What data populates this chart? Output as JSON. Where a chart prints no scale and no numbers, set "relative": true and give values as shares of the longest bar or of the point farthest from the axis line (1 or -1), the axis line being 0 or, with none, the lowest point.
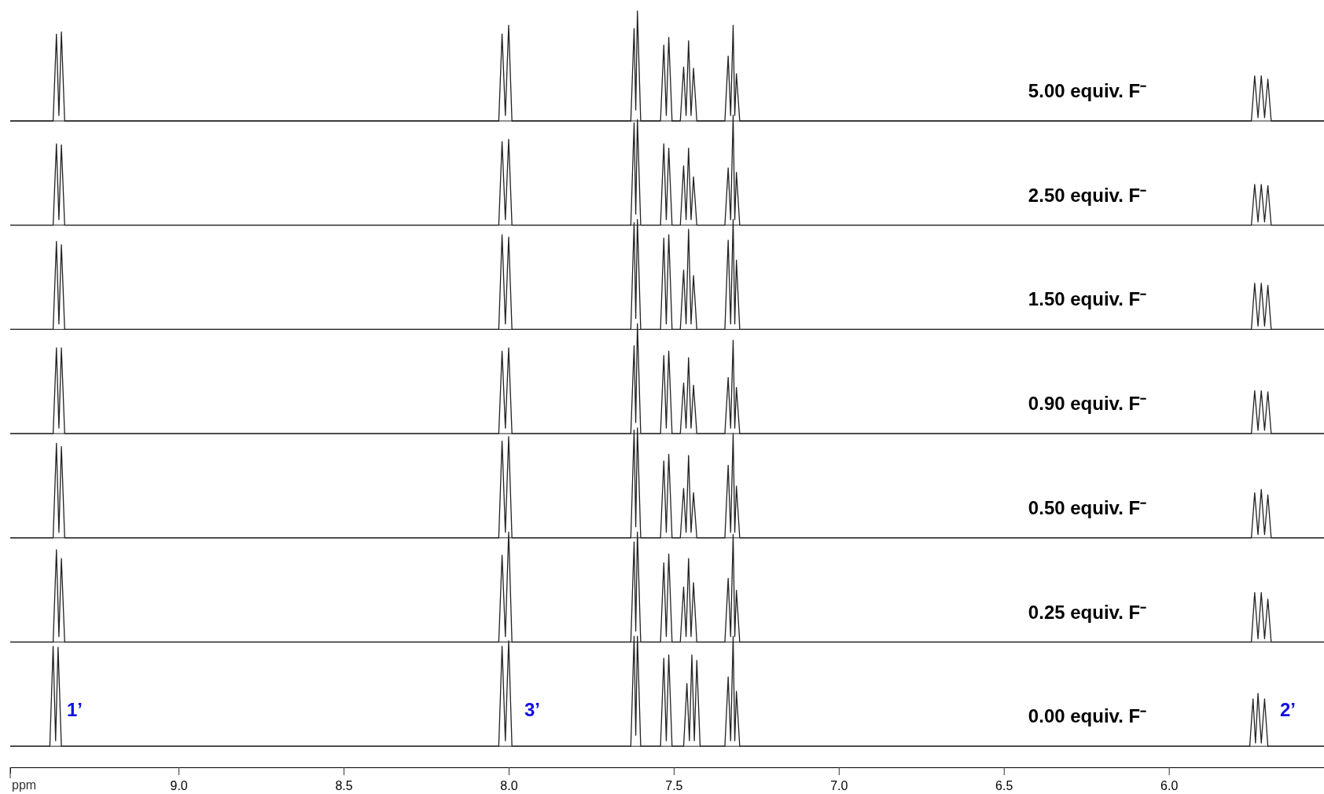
{
  "chart_data": [
    {
      "type": "line",
      "relative": true,
      "xlim": [
        9.51,
        5.53
      ],
      "tick_labels": false,
      "annotations": [
        "5.00 equiv. F⁻"
      ],
      "x": [
        9.51,
        9.38,
        9.37,
        9.3625,
        9.355,
        9.345,
        8.03,
        8.02,
        8.01,
        8.0,
        7.99,
        7.63,
        7.62,
        7.615,
        7.61,
        7.6,
        7.54,
        7.53,
        7.5225,
        7.515,
        7.505,
        7.48,
        7.47,
        7.4625,
        7.455,
        7.4475,
        7.44,
        7.43,
        7.345,
        7.335,
        7.3275,
        7.32,
        7.315,
        7.31,
        7.3,
        5.75,
        5.74,
        5.73,
        5.72,
        5.71,
        5.7,
        5.69,
        5.53
      ],
      "series": [
        {
          "color": "#222222",
          "values": [
            0,
            0,
            0.79,
            0.05,
            0.81,
            0,
            0,
            0.79,
            0.05,
            0.87,
            0,
            0,
            0.84,
            0.1,
            1,
            0,
            0,
            0.69,
            0.05,
            0.76,
            0,
            0,
            0.49,
            0.05,
            0.73,
            0.05,
            0.48,
            0,
            0,
            0.59,
            0.05,
            0.87,
            0.05,
            0.43,
            0,
            0,
            0.41,
            0.03,
            0.41,
            0.03,
            0.38,
            0,
            0
          ]
        }
      ]
    },
    {
      "type": "line",
      "relative": true,
      "xlim": [
        9.51,
        5.53
      ],
      "tick_labels": false,
      "annotations": [
        "2.50 equiv. F⁻"
      ],
      "x": [
        9.51,
        9.38,
        9.37,
        9.3625,
        9.355,
        9.345,
        8.03,
        8.02,
        8.01,
        8.0,
        7.99,
        7.63,
        7.62,
        7.615,
        7.61,
        7.6,
        7.54,
        7.53,
        7.5225,
        7.515,
        7.505,
        7.48,
        7.47,
        7.4625,
        7.455,
        7.4475,
        7.44,
        7.43,
        7.345,
        7.335,
        7.3275,
        7.32,
        7.315,
        7.31,
        7.3,
        5.75,
        5.74,
        5.73,
        5.72,
        5.71,
        5.7,
        5.69,
        5.53
      ],
      "series": [
        {
          "color": "#222222",
          "values": [
            0,
            0,
            0.74,
            0.05,
            0.73,
            0,
            0,
            0.76,
            0.05,
            0.78,
            0,
            0,
            0.93,
            0.1,
            0.96,
            0,
            0,
            0.74,
            0.05,
            0.7,
            0,
            0,
            0.54,
            0.05,
            0.7,
            0.05,
            0.44,
            0,
            0,
            0.52,
            0.05,
            1,
            0.05,
            0.48,
            0,
            0,
            0.37,
            0.03,
            0.37,
            0.03,
            0.36,
            0,
            0
          ]
        }
      ]
    },
    {
      "type": "line",
      "relative": true,
      "xlim": [
        9.51,
        5.53
      ],
      "tick_labels": false,
      "annotations": [
        "1.50 equiv. F⁻"
      ],
      "x": [
        9.51,
        9.38,
        9.37,
        9.3625,
        9.355,
        9.345,
        8.03,
        8.02,
        8.01,
        8.0,
        7.99,
        7.63,
        7.62,
        7.615,
        7.61,
        7.6,
        7.54,
        7.53,
        7.5225,
        7.515,
        7.505,
        7.48,
        7.47,
        7.4625,
        7.455,
        7.4475,
        7.44,
        7.43,
        7.345,
        7.335,
        7.3275,
        7.32,
        7.315,
        7.31,
        7.3,
        5.75,
        5.74,
        5.73,
        5.72,
        5.71,
        5.7,
        5.69,
        5.53
      ],
      "series": [
        {
          "color": "#222222",
          "values": [
            0,
            0,
            0.8,
            0.05,
            0.77,
            0,
            0,
            0.86,
            0.05,
            0.84,
            0,
            0,
            0.97,
            0.1,
            1,
            0,
            0,
            0.83,
            0.05,
            0.86,
            0,
            0,
            0.54,
            0.05,
            0.91,
            0.05,
            0.49,
            0,
            0,
            0.81,
            0.05,
            1,
            0.05,
            0.63,
            0,
            0,
            0.42,
            0.03,
            0.42,
            0.03,
            0.4,
            0,
            0
          ]
        }
      ]
    },
    {
      "type": "line",
      "relative": true,
      "xlim": [
        9.51,
        5.53
      ],
      "tick_labels": false,
      "annotations": [
        "0.90 equiv. F⁻"
      ],
      "x": [
        9.51,
        9.38,
        9.37,
        9.3625,
        9.355,
        9.345,
        8.03,
        8.02,
        8.01,
        8.0,
        7.99,
        7.63,
        7.62,
        7.615,
        7.61,
        7.6,
        7.54,
        7.53,
        7.5225,
        7.515,
        7.505,
        7.48,
        7.47,
        7.4625,
        7.455,
        7.4475,
        7.44,
        7.43,
        7.345,
        7.335,
        7.3275,
        7.32,
        7.315,
        7.31,
        7.3,
        5.75,
        5.74,
        5.73,
        5.72,
        5.71,
        5.7,
        5.69,
        5.53
      ],
      "series": [
        {
          "color": "#222222",
          "values": [
            0,
            0,
            0.78,
            0.05,
            0.78,
            0,
            0,
            0.75,
            0.05,
            0.78,
            0,
            0,
            0.8,
            0.1,
            1,
            0,
            0,
            0.71,
            0.05,
            0.75,
            0,
            0,
            0.46,
            0.05,
            0.69,
            0.05,
            0.44,
            0,
            0,
            0.51,
            0.05,
            0.85,
            0.05,
            0.42,
            0,
            0,
            0.39,
            0.03,
            0.39,
            0.03,
            0.38,
            0,
            0
          ]
        }
      ]
    },
    {
      "type": "line",
      "relative": true,
      "xlim": [
        9.51,
        5.53
      ],
      "tick_labels": false,
      "annotations": [
        "0.50 equiv. F⁻"
      ],
      "x": [
        9.51,
        9.38,
        9.37,
        9.3625,
        9.355,
        9.345,
        8.03,
        8.02,
        8.01,
        8.0,
        7.99,
        7.63,
        7.62,
        7.615,
        7.61,
        7.6,
        7.54,
        7.53,
        7.5225,
        7.515,
        7.505,
        7.48,
        7.47,
        7.4625,
        7.455,
        7.4475,
        7.44,
        7.43,
        7.345,
        7.335,
        7.3275,
        7.32,
        7.315,
        7.31,
        7.3,
        5.75,
        5.74,
        5.73,
        5.72,
        5.71,
        5.7,
        5.69,
        5.53
      ],
      "series": [
        {
          "color": "#222222",
          "values": [
            0,
            0,
            0.86,
            0.05,
            0.83,
            0,
            0,
            0.88,
            0.05,
            0.92,
            0,
            0,
            0.98,
            0.1,
            1,
            0,
            0,
            0.7,
            0.05,
            0.76,
            0,
            0,
            0.45,
            0.05,
            0.75,
            0.05,
            0.41,
            0,
            0,
            0.66,
            0.05,
            0.95,
            0.05,
            0.47,
            0,
            0,
            0.41,
            0.03,
            0.44,
            0.03,
            0.39,
            0,
            0
          ]
        }
      ]
    },
    {
      "type": "line",
      "relative": true,
      "xlim": [
        9.51,
        5.53
      ],
      "tick_labels": false,
      "annotations": [
        "0.25 equiv. F⁻"
      ],
      "x": [
        9.51,
        9.38,
        9.37,
        9.3625,
        9.355,
        9.345,
        8.03,
        8.02,
        8.01,
        8.0,
        7.99,
        7.63,
        7.62,
        7.615,
        7.61,
        7.6,
        7.54,
        7.53,
        7.5225,
        7.515,
        7.505,
        7.48,
        7.47,
        7.4625,
        7.455,
        7.4475,
        7.44,
        7.43,
        7.345,
        7.335,
        7.3275,
        7.32,
        7.315,
        7.31,
        7.3,
        5.75,
        5.74,
        5.73,
        5.72,
        5.71,
        5.7,
        5.69,
        5.53
      ],
      "series": [
        {
          "color": "#222222",
          "values": [
            0,
            0,
            0.84,
            0.05,
            0.76,
            0,
            0,
            0.79,
            0.05,
            1,
            0,
            0,
            0.91,
            0.1,
            1,
            0,
            0,
            0.72,
            0.05,
            0.8,
            0,
            0,
            0.5,
            0.05,
            0.76,
            0.05,
            0.54,
            0,
            0,
            0.58,
            0.05,
            0.98,
            0.05,
            0.47,
            0,
            0,
            0.45,
            0.03,
            0.45,
            0.03,
            0.39,
            0,
            0
          ]
        }
      ]
    },
    {
      "type": "line",
      "relative": true,
      "xlim": [
        9.51,
        5.53
      ],
      "xlabel": "ppm",
      "xticks": [
        {
          "value": 9.0,
          "label": "9.0"
        },
        {
          "value": 8.5,
          "label": "8.5"
        },
        {
          "value": 8.0,
          "label": "8.0"
        },
        {
          "value": 7.5,
          "label": "7.5"
        },
        {
          "value": 7.0,
          "label": "7.0"
        },
        {
          "value": 6.5,
          "label": "6.5"
        },
        {
          "value": 6.0,
          "label": "6.0"
        }
      ],
      "tick_labels": "x",
      "annotations": [
        "0.00 equiv. F⁻",
        "1’",
        "3’",
        "2’"
      ],
      "x": [
        9.51,
        9.39,
        9.38,
        9.3725,
        9.365,
        9.355,
        8.03,
        8.02,
        8.01,
        8.0,
        7.99,
        7.63,
        7.62,
        7.615,
        7.61,
        7.6,
        7.54,
        7.53,
        7.5225,
        7.515,
        7.505,
        7.47,
        7.46,
        7.4525,
        7.445,
        7.4375,
        7.43,
        7.42,
        7.345,
        7.335,
        7.3275,
        7.32,
        7.315,
        7.31,
        7.3,
        5.755,
        5.745,
        5.7375,
        5.73,
        5.72,
        5.71,
        5.7,
        5.53
      ],
      "series": [
        {
          "color": "#222222",
          "values": [
            0,
            0,
            0.91,
            0.05,
            0.9,
            0,
            0,
            0.91,
            0.05,
            0.96,
            0,
            0,
            1,
            0.1,
            1,
            0,
            0,
            0.8,
            0.05,
            0.83,
            0,
            0,
            0.57,
            0.05,
            0.83,
            0.05,
            0.78,
            0,
            0,
            0.63,
            0.05,
            1,
            0.05,
            0.5,
            0,
            0,
            0.43,
            0.03,
            0.48,
            0.03,
            0.43,
            0,
            0
          ]
        }
      ]
    }
  ]
}
